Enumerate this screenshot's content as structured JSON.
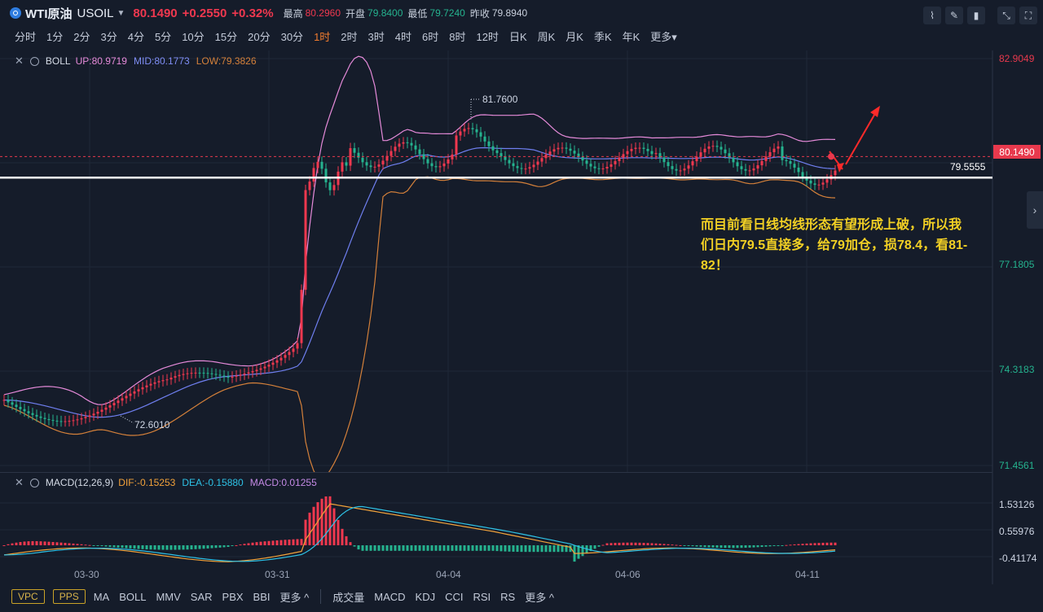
{
  "header": {
    "name": "WTI原油",
    "symbol": "USOIL",
    "price": "80.1490",
    "change": "+0.2550",
    "change_pct": "+0.32%",
    "high_label": "最高",
    "high": "80.2960",
    "open_label": "开盘",
    "open": "79.8400",
    "low_label": "最低",
    "low": "79.7240",
    "prev_label": "昨收",
    "prev": "79.8940"
  },
  "periods": [
    "分时",
    "1分",
    "2分",
    "3分",
    "4分",
    "5分",
    "10分",
    "15分",
    "20分",
    "30分",
    "1时",
    "2时",
    "3时",
    "4时",
    "6时",
    "8时",
    "12时",
    "日K",
    "周K",
    "月K",
    "季K",
    "年K",
    "更多▾"
  ],
  "active_period": "1时",
  "boll": {
    "name": "BOLL",
    "up": "UP:80.9719",
    "mid": "MID:80.1773",
    "low": "LOW:79.3826"
  },
  "macd": {
    "name": "MACD(12,26,9)",
    "dif": "DIF:-0.15253",
    "dea": "DEA:-0.15880",
    "macd": "MACD:0.01255"
  },
  "price_axis": [
    "82.9049",
    "77.1805",
    "74.3183",
    "71.4561"
  ],
  "macd_axis": [
    "1.53126",
    "0.55976",
    "-0.41174"
  ],
  "current_price_tag": "80.1490",
  "horizontal_line_label": "79.5555",
  "annotations": {
    "high": "81.7600",
    "low": "72.6010"
  },
  "x_labels": [
    "03-30",
    "03-31",
    "04-04",
    "04-06",
    "04-11"
  ],
  "note": "而目前看日线均线形态有望形成上破，所以我们日内79.5直接多，给79加仓，损78.4，看81-82！",
  "bottom_left": [
    "VPC",
    "PPS"
  ],
  "bottom_main_indicators": [
    "MA",
    "BOLL",
    "MMV",
    "SAR",
    "PBX",
    "BBI",
    "更多 ^"
  ],
  "bottom_sub_indicators": [
    "成交量",
    "MACD",
    "KDJ",
    "CCI",
    "RSI",
    "RS",
    "更多 ^"
  ],
  "colors": {
    "up": "#f0384f",
    "down": "#25b38f",
    "upper": "#e58ad9",
    "mid": "#6f7ff0",
    "lower": "#d4803a",
    "dif": "#f2a23a",
    "dea": "#2ec2e6"
  },
  "icons": [
    "line-tool-icon",
    "pencil-icon",
    "candle-settings-icon",
    "expand-icon",
    "fullscreen-icon",
    "chevron-right-icon"
  ]
}
